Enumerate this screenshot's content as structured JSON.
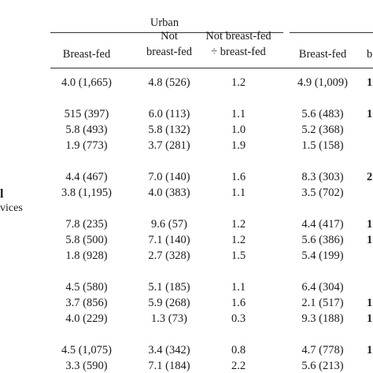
{
  "header": {
    "group_title": "Urban",
    "col1": "Breast-fed",
    "col2_line1": "Not",
    "col2_line2": "breast-fed",
    "col3_line1": "Not breast-fed",
    "col3_line2": "÷ breast-fed",
    "col4": "Breast-fed",
    "col5_partial": "b"
  },
  "row_labels": {
    "label_a": "l",
    "label_b": "vices"
  },
  "rows": [
    {
      "c1": "4.0 (1,665)",
      "c2": "4.8 (526)",
      "c3": "1.2",
      "c4": "4.9 (1,009)",
      "c5": "1"
    },
    {
      "c1": "515 (397)",
      "c2": "6.0 (113)",
      "c3": "1.1",
      "c4": "5.6 (483)",
      "c5": "1"
    },
    {
      "c1": "5.8 (493)",
      "c2": "5.8 (132)",
      "c3": "1.0",
      "c4": "5.2 (368)",
      "c5": ""
    },
    {
      "c1": "1.9 (773)",
      "c2": "3.7 (281)",
      "c3": "1.9",
      "c4": "1.5 (158)",
      "c5": ""
    },
    {
      "c1": "4.4 (467)",
      "c2": "7.0 (140)",
      "c3": "1.6",
      "c4": "8.3 (303)",
      "c5": "2"
    },
    {
      "c1": "3.8 (1,195)",
      "c2": "4.0 (383)",
      "c3": "1.1",
      "c4": "3.5 (702)",
      "c5": ""
    },
    {
      "c1": "7.8 (235)",
      "c2": "9.6 (57)",
      "c3": "1.2",
      "c4": "4.4 (417)",
      "c5": "1"
    },
    {
      "c1": "5.8 (500)",
      "c2": "7.1 (140)",
      "c3": "1.2",
      "c4": "5.6 (386)",
      "c5": "1"
    },
    {
      "c1": "1.8 (928)",
      "c2": "2.7 (328)",
      "c3": "1.5",
      "c4": "5.4 (199)",
      "c5": ""
    },
    {
      "c1": "4.5 (580)",
      "c2": "5.1 (185)",
      "c3": "1.1",
      "c4": "6.4 (304)",
      "c5": ""
    },
    {
      "c1": "3.7 (856)",
      "c2": "5.9 (268)",
      "c3": "1.6",
      "c4": "2.1 (517)",
      "c5": "1"
    },
    {
      "c1": "4.0 (229)",
      "c2": "1.3 (73)",
      "c3": "0.3",
      "c4": "9.3 (188)",
      "c5": "1"
    },
    {
      "c1": "4.5 (1,075)",
      "c2": "3.4 (342)",
      "c3": "0.8",
      "c4": "4.7 (778)",
      "c5": "1"
    },
    {
      "c1": "3.3 (590)",
      "c2": "7.1 (184)",
      "c3": "2.2",
      "c4": "5.6 (213)",
      "c5": ""
    }
  ]
}
